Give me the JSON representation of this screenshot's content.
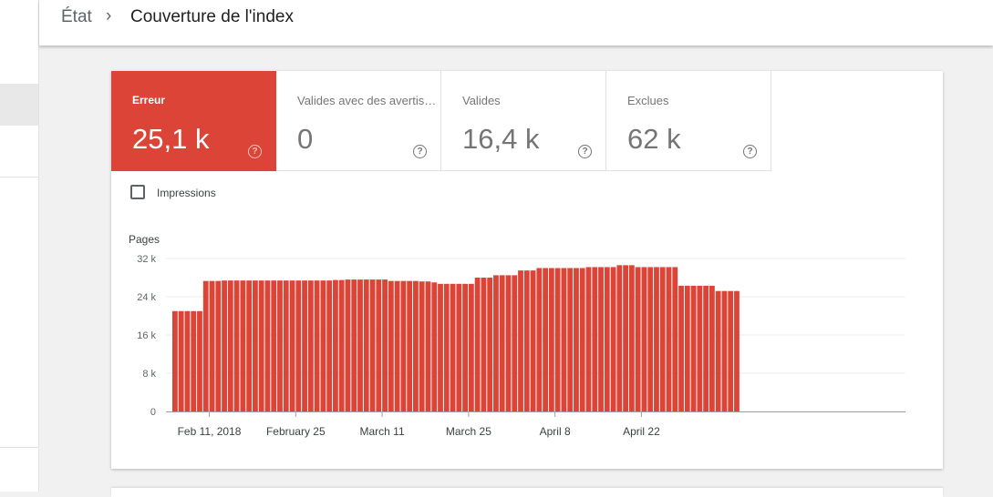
{
  "breadcrumb": {
    "root": "État",
    "separator": "›",
    "current": "Couverture de l'index"
  },
  "tiles": [
    {
      "label": "Erreur",
      "value": "25,1 k",
      "active": true
    },
    {
      "label": "Valides avec des avertis…",
      "value": "0",
      "active": false
    },
    {
      "label": "Valides",
      "value": "16,4 k",
      "active": false
    },
    {
      "label": "Exclues",
      "value": "62 k",
      "active": false
    }
  ],
  "help_icon_glyph": "?",
  "impressions": {
    "label": "Impressions",
    "checked": false
  },
  "chart_data": {
    "type": "bar",
    "ylabel": "Pages",
    "ylim": [
      0,
      32000
    ],
    "yticks": [
      0,
      8000,
      16000,
      24000,
      32000
    ],
    "ytick_labels": [
      "0",
      "8 k",
      "16 k",
      "24 k",
      "32 k"
    ],
    "xtick_labels": [
      "Feb 11, 2018",
      "February 25",
      "March 11",
      "March 25",
      "April 8",
      "April 22"
    ],
    "xtick_day_index": [
      6,
      20,
      34,
      48,
      62,
      76
    ],
    "bar_color": "#db4437",
    "values": [
      21000,
      21000,
      21000,
      21000,
      21000,
      27300,
      27300,
      27300,
      27400,
      27400,
      27400,
      27400,
      27400,
      27400,
      27400,
      27400,
      27400,
      27400,
      27400,
      27400,
      27400,
      27400,
      27400,
      27400,
      27400,
      27400,
      27500,
      27500,
      27600,
      27600,
      27600,
      27600,
      27600,
      27600,
      27600,
      27300,
      27300,
      27300,
      27300,
      27300,
      27200,
      27200,
      27000,
      26700,
      26700,
      26700,
      26700,
      26700,
      26700,
      28000,
      28000,
      28000,
      28500,
      28500,
      28500,
      28500,
      29500,
      29500,
      29500,
      30000,
      30000,
      30000,
      30000,
      30000,
      30000,
      30000,
      30000,
      30200,
      30200,
      30200,
      30200,
      30200,
      30600,
      30600,
      30600,
      30200,
      30200,
      30200,
      30200,
      30200,
      30200,
      30200,
      26300,
      26300,
      26300,
      26300,
      26300,
      26300,
      25200,
      25200,
      25200,
      25200
    ]
  }
}
